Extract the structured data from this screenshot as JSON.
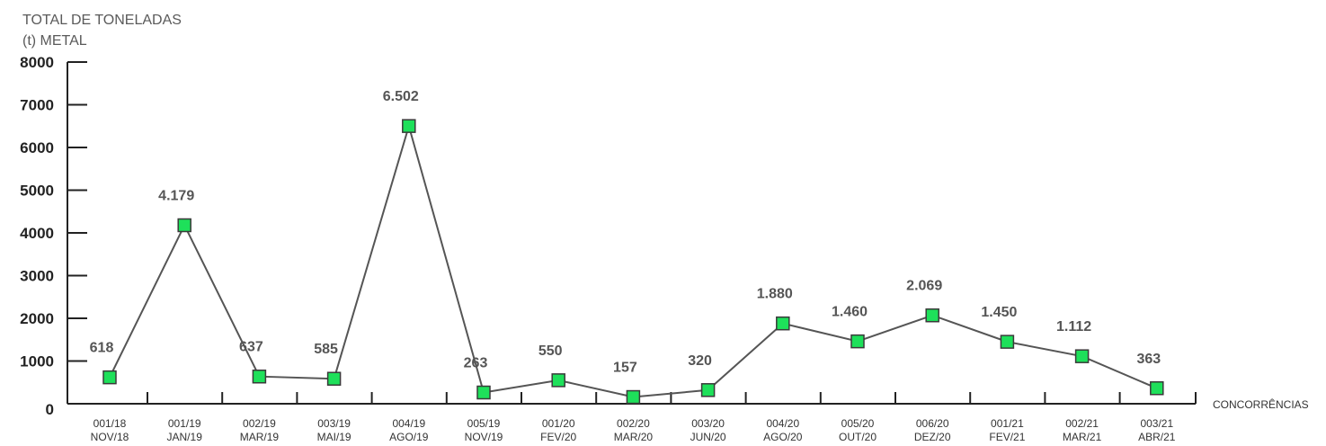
{
  "chart_data": {
    "type": "line",
    "ylabel_line1": "TOTAL DE TONELADAS",
    "ylabel_line2": "(t) METAL",
    "xlabel": "CONCORRÊNCIAS",
    "ylim": [
      0,
      8000
    ],
    "yticks": [
      "0",
      "1000",
      "2000",
      "3000",
      "4000",
      "5000",
      "6000",
      "7000",
      "8000"
    ],
    "categories": [
      [
        "001/18",
        "NOV/18"
      ],
      [
        "001/19",
        "JAN/19"
      ],
      [
        "002/19",
        "MAR/19"
      ],
      [
        "003/19",
        "MAI/19"
      ],
      [
        "004/19",
        "AGO/19"
      ],
      [
        "005/19",
        "NOV/19"
      ],
      [
        "001/20",
        "FEV/20"
      ],
      [
        "002/20",
        "MAR/20"
      ],
      [
        "003/20",
        "JUN/20"
      ],
      [
        "004/20",
        "AGO/20"
      ],
      [
        "005/20",
        "OUT/20"
      ],
      [
        "006/20",
        "DEZ/20"
      ],
      [
        "001/21",
        "FEV/21"
      ],
      [
        "002/21",
        "MAR/21"
      ],
      [
        "003/21",
        "ABR/21"
      ]
    ],
    "values": [
      618,
      4179,
      637,
      585,
      6502,
      263,
      550,
      157,
      320,
      1880,
      1460,
      2069,
      1450,
      1112,
      363
    ],
    "data_labels": [
      "618",
      "4.179",
      "637",
      "585",
      "6.502",
      "263",
      "550",
      "157",
      "320",
      "1.880",
      "1.460",
      "2.069",
      "1.450",
      "1.112",
      "363"
    ],
    "grid": false,
    "colors": {
      "line": "#555555",
      "marker_fill": "#1ee05a",
      "marker_stroke": "#3a3a3a",
      "axis": "#222222"
    }
  }
}
